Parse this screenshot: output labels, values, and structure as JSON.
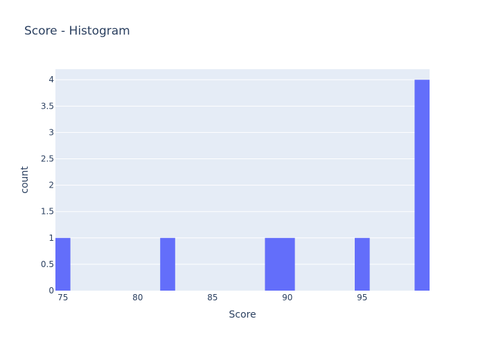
{
  "chart_data": {
    "type": "histogram",
    "title": "Score - Histogram",
    "xlabel": "Score",
    "ylabel": "count",
    "xlim": [
      74.5,
      99.5
    ],
    "ylim": [
      0,
      4.2
    ],
    "x_ticks": [
      75,
      80,
      85,
      90,
      95
    ],
    "y_ticks": [
      0,
      0.5,
      1,
      1.5,
      2,
      2.5,
      3,
      3.5,
      4
    ],
    "y_tick_labels": [
      "0",
      "0.5",
      "1",
      "1.5",
      "2",
      "2.5",
      "3",
      "3.5",
      "4"
    ],
    "bins": [
      {
        "start": 74.5,
        "end": 75.5,
        "count": 1
      },
      {
        "start": 81.5,
        "end": 82.5,
        "count": 1
      },
      {
        "start": 88.5,
        "end": 89.5,
        "count": 1
      },
      {
        "start": 89.5,
        "end": 90.5,
        "count": 1
      },
      {
        "start": 94.5,
        "end": 95.5,
        "count": 1
      },
      {
        "start": 98.5,
        "end": 99.5,
        "count": 4
      }
    ],
    "bar_color": "#636efa",
    "plot_bg": "#e5ecf6",
    "grid": true,
    "legend": "none"
  }
}
